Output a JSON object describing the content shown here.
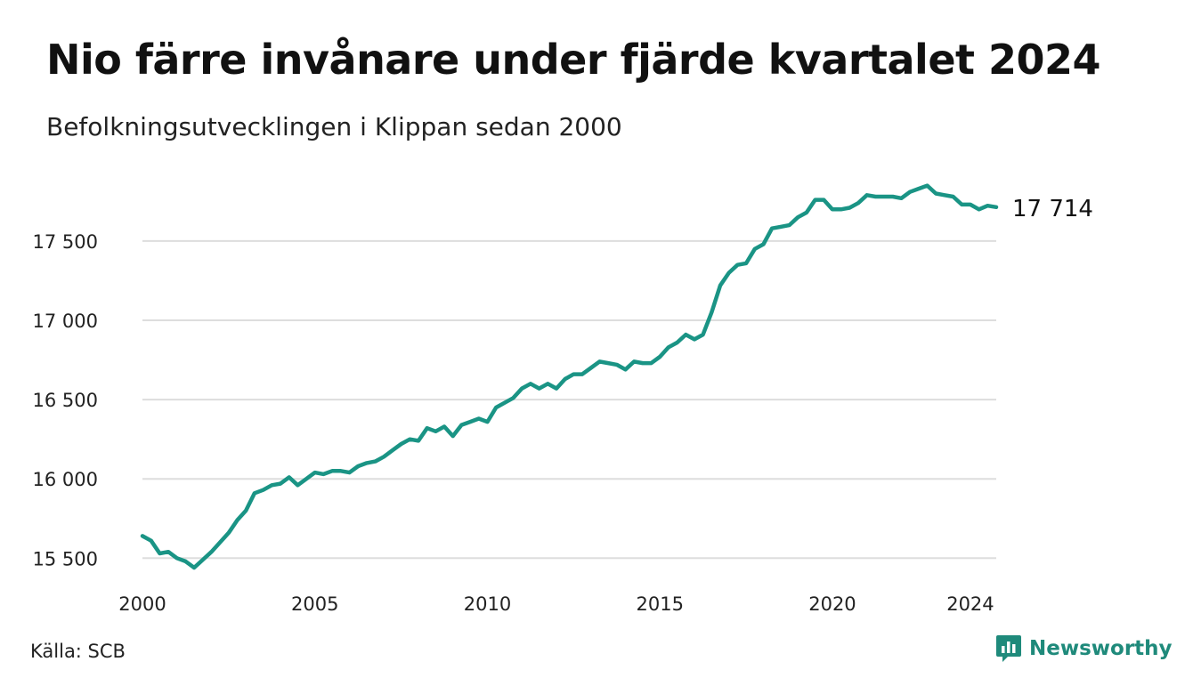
{
  "header": {
    "title": "Nio färre invånare under fjärde kvartalet 2024",
    "subtitle": "Befolkningsutvecklingen i Klippan sedan 2000"
  },
  "footer": {
    "source": "Källa: SCB",
    "brand": "Newsworthy"
  },
  "colors": {
    "line": "#1a9485",
    "grid": "#dddddd",
    "brand": "#1f8a7b"
  },
  "chart_data": {
    "type": "line",
    "x_unit": "year",
    "x_ticks": [
      2000,
      2005,
      2010,
      2015,
      2020,
      2024
    ],
    "x_tick_labels": [
      "2000",
      "2005",
      "2010",
      "2015",
      "2020",
      "2024"
    ],
    "y_ticks": [
      15500,
      16000,
      16500,
      17000,
      17500
    ],
    "y_tick_labels": [
      "15 500",
      "16 000",
      "16 500",
      "17 000",
      "17 500"
    ],
    "xlim": [
      2000,
      2024.75
    ],
    "ylim": [
      15440,
      17870
    ],
    "grid": true,
    "end_label": "17 714",
    "series": [
      {
        "values": [
          15640,
          15610,
          15530,
          15540,
          15500,
          15480,
          15440,
          15490,
          15540,
          15600,
          15660,
          15740,
          15800,
          15910,
          15930,
          15960,
          15970,
          16010,
          15960,
          16000,
          16040,
          16030,
          16050,
          16050,
          16040,
          16080,
          16100,
          16110,
          16140,
          16180,
          16220,
          16250,
          16240,
          16320,
          16300,
          16330,
          16270,
          16340,
          16360,
          16380,
          16360,
          16450,
          16480,
          16510,
          16570,
          16600,
          16570,
          16600,
          16570,
          16630,
          16660,
          16660,
          16700,
          16740,
          16730,
          16720,
          16690,
          16740,
          16730,
          16730,
          16770,
          16830,
          16860,
          16910,
          16880,
          16910,
          17050,
          17220,
          17300,
          17350,
          17360,
          17450,
          17480,
          17580,
          17590,
          17600,
          17650,
          17680,
          17760,
          17760,
          17700,
          17700,
          17710,
          17740,
          17790,
          17780,
          17780,
          17780,
          17770,
          17810,
          17830,
          17850,
          17800,
          17790,
          17780,
          17730,
          17730,
          17700,
          17723,
          17714
        ]
      }
    ]
  }
}
